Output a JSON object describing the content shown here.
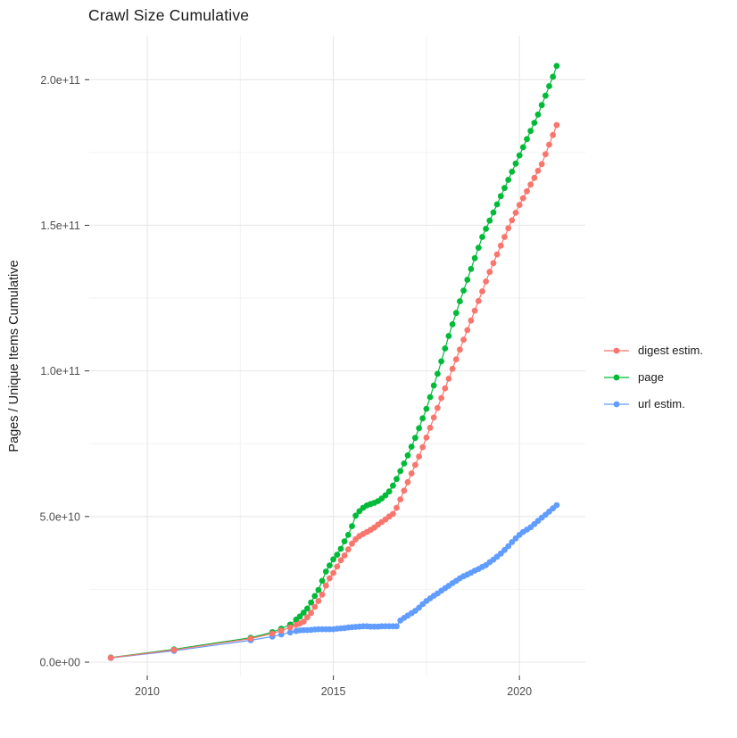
{
  "chart_data": {
    "type": "scatter",
    "title": "Crawl Size Cumulative",
    "xlabel": "",
    "ylabel": "Pages / Unique Items Cumulative",
    "values_unit": "pages, in billions (1e9)",
    "legend_position": "right",
    "grid": true,
    "x_axis": {
      "range": [
        2008.44,
        2021.77
      ],
      "ticks": [
        2010,
        2015,
        2020
      ],
      "tick_labels": [
        "2010",
        "2015",
        "2020"
      ],
      "minor_ticks": [
        2012.5,
        2017.5
      ]
    },
    "y_axis": {
      "range_e9": [
        -4.6,
        215.1
      ],
      "ticks_e9": [
        0,
        50,
        100,
        150,
        200
      ],
      "tick_labels": [
        "0.0e+00",
        "5.0e+10",
        "1.0e+11",
        "1.5e+11",
        "2.0e+11"
      ],
      "minor_ticks_e9": [
        25,
        75,
        125,
        175
      ]
    },
    "colors": {
      "grid_major": "#e7e7e7",
      "grid_minor": "#f3f3f3",
      "axis_text": "#4d4d4d",
      "tick_mark": "#333333"
    },
    "series": [
      {
        "name": "digest estim.",
        "color": "#F8766D",
        "points": [
          [
            2009.02,
            1.5
          ],
          [
            2010.72,
            4.2
          ],
          [
            2012.78,
            8.1
          ],
          [
            2013.36,
            9.8
          ],
          [
            2013.6,
            10.8
          ],
          [
            2013.84,
            11.9
          ],
          [
            2014,
            12.8
          ],
          [
            2014.1,
            13.3
          ],
          [
            2014.2,
            13.9
          ],
          [
            2014.3,
            15.4
          ],
          [
            2014.4,
            16.9
          ],
          [
            2014.5,
            19
          ],
          [
            2014.6,
            21
          ],
          [
            2014.7,
            23.2
          ],
          [
            2014.8,
            26.3
          ],
          [
            2014.9,
            28.8
          ],
          [
            2015,
            30.6
          ],
          [
            2015.1,
            32.8
          ],
          [
            2015.2,
            35
          ],
          [
            2015.3,
            36.6
          ],
          [
            2015.4,
            38.7
          ],
          [
            2015.5,
            40.7
          ],
          [
            2015.6,
            42.2
          ],
          [
            2015.7,
            43.3
          ],
          [
            2015.8,
            44
          ],
          [
            2015.9,
            44.7
          ],
          [
            2016,
            45.4
          ],
          [
            2016.1,
            46.2
          ],
          [
            2016.2,
            47.2
          ],
          [
            2016.3,
            48.1
          ],
          [
            2016.4,
            49
          ],
          [
            2016.5,
            50
          ],
          [
            2016.6,
            50.9
          ],
          [
            2016.7,
            53
          ],
          [
            2016.8,
            55.9
          ],
          [
            2016.9,
            58.9
          ],
          [
            2017,
            61.8
          ],
          [
            2017.1,
            64.8
          ],
          [
            2017.2,
            67.7
          ],
          [
            2017.3,
            70.6
          ],
          [
            2017.4,
            73.8
          ],
          [
            2017.5,
            77.1
          ],
          [
            2017.6,
            80.5
          ],
          [
            2017.7,
            84
          ],
          [
            2017.8,
            87.3
          ],
          [
            2017.9,
            90.7
          ],
          [
            2018,
            94
          ],
          [
            2018.1,
            97.3
          ],
          [
            2018.2,
            100.7
          ],
          [
            2018.3,
            104
          ],
          [
            2018.4,
            107.3
          ],
          [
            2018.5,
            110.7
          ],
          [
            2018.6,
            114
          ],
          [
            2018.7,
            117.3
          ],
          [
            2018.8,
            120.7
          ],
          [
            2018.9,
            124
          ],
          [
            2019,
            127.3
          ],
          [
            2019.1,
            130.7
          ],
          [
            2019.2,
            134
          ],
          [
            2019.3,
            137
          ],
          [
            2019.4,
            140
          ],
          [
            2019.5,
            143
          ],
          [
            2019.6,
            146
          ],
          [
            2019.7,
            149
          ],
          [
            2019.8,
            151.7
          ],
          [
            2019.9,
            154.3
          ],
          [
            2020,
            157
          ],
          [
            2020.1,
            159.3
          ],
          [
            2020.2,
            161.7
          ],
          [
            2020.3,
            164
          ],
          [
            2020.4,
            166.3
          ],
          [
            2020.5,
            168.7
          ],
          [
            2020.6,
            171
          ],
          [
            2020.7,
            174.4
          ],
          [
            2020.8,
            177.7
          ],
          [
            2020.9,
            181
          ],
          [
            2021,
            184.4
          ]
        ]
      },
      {
        "name": "page",
        "color": "#00BA38",
        "points": [
          [
            2009.02,
            1.6
          ],
          [
            2010.72,
            4.4
          ],
          [
            2012.78,
            8.4
          ],
          [
            2013.36,
            10.3
          ],
          [
            2013.6,
            11.5
          ],
          [
            2013.84,
            12.9
          ],
          [
            2014,
            14.6
          ],
          [
            2014.1,
            15.7
          ],
          [
            2014.2,
            17
          ],
          [
            2014.3,
            18.4
          ],
          [
            2014.4,
            20.5
          ],
          [
            2014.5,
            22.7
          ],
          [
            2014.6,
            24.8
          ],
          [
            2014.7,
            27.9
          ],
          [
            2014.8,
            31.1
          ],
          [
            2014.9,
            33.2
          ],
          [
            2015,
            35.3
          ],
          [
            2015.1,
            36.9
          ],
          [
            2015.2,
            38.9
          ],
          [
            2015.3,
            41.5
          ],
          [
            2015.4,
            43.7
          ],
          [
            2015.5,
            46.7
          ],
          [
            2015.6,
            50.3
          ],
          [
            2015.7,
            51.8
          ],
          [
            2015.8,
            53
          ],
          [
            2015.9,
            53.8
          ],
          [
            2016,
            54.3
          ],
          [
            2016.1,
            54.7
          ],
          [
            2016.2,
            55.3
          ],
          [
            2016.3,
            56.2
          ],
          [
            2016.4,
            57.3
          ],
          [
            2016.5,
            58.6
          ],
          [
            2016.6,
            60.6
          ],
          [
            2016.7,
            62.9
          ],
          [
            2016.8,
            65.6
          ],
          [
            2016.9,
            68.2
          ],
          [
            2017,
            71
          ],
          [
            2017.1,
            74
          ],
          [
            2017.2,
            77
          ],
          [
            2017.3,
            80.3
          ],
          [
            2017.4,
            83.7
          ],
          [
            2017.5,
            87
          ],
          [
            2017.6,
            91
          ],
          [
            2017.7,
            95
          ],
          [
            2017.8,
            99
          ],
          [
            2017.9,
            103.3
          ],
          [
            2018,
            107.7
          ],
          [
            2018.1,
            112
          ],
          [
            2018.2,
            116
          ],
          [
            2018.3,
            119.9
          ],
          [
            2018.4,
            123.9
          ],
          [
            2018.5,
            127.6
          ],
          [
            2018.6,
            131.3
          ],
          [
            2018.7,
            135
          ],
          [
            2018.8,
            138.7
          ],
          [
            2018.9,
            142.3
          ],
          [
            2019,
            146
          ],
          [
            2019.1,
            148.8
          ],
          [
            2019.2,
            151.6
          ],
          [
            2019.3,
            154.4
          ],
          [
            2019.4,
            157.2
          ],
          [
            2019.5,
            160
          ],
          [
            2019.6,
            162.8
          ],
          [
            2019.7,
            165.6
          ],
          [
            2019.8,
            168.4
          ],
          [
            2019.9,
            171.2
          ],
          [
            2020,
            174
          ],
          [
            2020.1,
            176.8
          ],
          [
            2020.2,
            179.6
          ],
          [
            2020.3,
            182.4
          ],
          [
            2020.4,
            185.2
          ],
          [
            2020.5,
            188
          ],
          [
            2020.6,
            191.3
          ],
          [
            2020.7,
            194.5
          ],
          [
            2020.8,
            197.8
          ],
          [
            2020.9,
            201
          ],
          [
            2021,
            204.7
          ]
        ]
      },
      {
        "name": "url estim.",
        "color": "#619CFF",
        "points": [
          [
            2009.02,
            1.4
          ],
          [
            2010.72,
            3.9
          ],
          [
            2012.78,
            7.5
          ],
          [
            2013.36,
            8.8
          ],
          [
            2013.6,
            9.5
          ],
          [
            2013.84,
            10.2
          ],
          [
            2014,
            10.7
          ],
          [
            2014.1,
            10.9
          ],
          [
            2014.2,
            11
          ],
          [
            2014.3,
            11
          ],
          [
            2014.4,
            11.1
          ],
          [
            2014.5,
            11.2
          ],
          [
            2014.6,
            11.3
          ],
          [
            2014.7,
            11.3
          ],
          [
            2014.8,
            11.3
          ],
          [
            2014.9,
            11.3
          ],
          [
            2015,
            11.3
          ],
          [
            2015.1,
            11.5
          ],
          [
            2015.2,
            11.6
          ],
          [
            2015.3,
            11.7
          ],
          [
            2015.4,
            11.9
          ],
          [
            2015.5,
            12
          ],
          [
            2015.6,
            12.1
          ],
          [
            2015.7,
            12.2
          ],
          [
            2015.8,
            12.3
          ],
          [
            2015.9,
            12.3
          ],
          [
            2016,
            12.2
          ],
          [
            2016.1,
            12.2
          ],
          [
            2016.2,
            12.2
          ],
          [
            2016.3,
            12.3
          ],
          [
            2016.4,
            12.3
          ],
          [
            2016.5,
            12.3
          ],
          [
            2016.6,
            12.3
          ],
          [
            2016.7,
            12.3
          ],
          [
            2016.8,
            14.3
          ],
          [
            2016.9,
            15.2
          ],
          [
            2017,
            16
          ],
          [
            2017.1,
            16.8
          ],
          [
            2017.2,
            17.6
          ],
          [
            2017.3,
            18.7
          ],
          [
            2017.4,
            19.9
          ],
          [
            2017.5,
            21
          ],
          [
            2017.6,
            21.9
          ],
          [
            2017.7,
            22.8
          ],
          [
            2017.8,
            23.6
          ],
          [
            2017.9,
            24.5
          ],
          [
            2018,
            25.4
          ],
          [
            2018.1,
            26.2
          ],
          [
            2018.2,
            27.1
          ],
          [
            2018.3,
            27.9
          ],
          [
            2018.4,
            28.8
          ],
          [
            2018.5,
            29.5
          ],
          [
            2018.6,
            30.1
          ],
          [
            2018.7,
            30.7
          ],
          [
            2018.8,
            31.4
          ],
          [
            2018.9,
            32
          ],
          [
            2019,
            32.7
          ],
          [
            2019.1,
            33.3
          ],
          [
            2019.2,
            34.3
          ],
          [
            2019.3,
            35.2
          ],
          [
            2019.4,
            36.2
          ],
          [
            2019.5,
            37.3
          ],
          [
            2019.6,
            38.5
          ],
          [
            2019.7,
            39.8
          ],
          [
            2019.8,
            41.2
          ],
          [
            2019.9,
            42.5
          ],
          [
            2020,
            43.7
          ],
          [
            2020.1,
            44.7
          ],
          [
            2020.2,
            45.5
          ],
          [
            2020.3,
            46.3
          ],
          [
            2020.4,
            47.4
          ],
          [
            2020.5,
            48.5
          ],
          [
            2020.6,
            49.6
          ],
          [
            2020.7,
            50.6
          ],
          [
            2020.8,
            51.7
          ],
          [
            2020.9,
            52.8
          ],
          [
            2021,
            53.9
          ]
        ]
      }
    ]
  }
}
